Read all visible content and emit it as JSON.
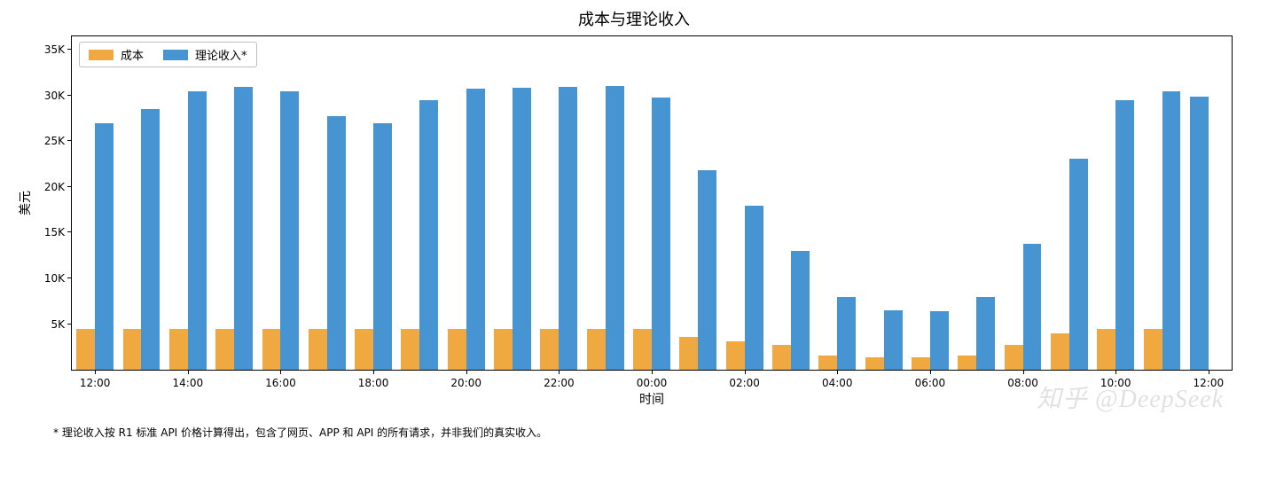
{
  "chart": {
    "type": "bar",
    "title": "成本与理论收入",
    "title_fontsize": 18,
    "xlabel": "时间",
    "ylabel": "美元",
    "label_fontsize": 14,
    "background_color": "#ffffff",
    "plot_border_color": "#000000",
    "xlim_categorical_padding": 0.5,
    "ylim": [
      0,
      36500
    ],
    "ytick_step": 5000,
    "yticks": [
      {
        "value": 5000,
        "label": "5K"
      },
      {
        "value": 10000,
        "label": "10K"
      },
      {
        "value": 15000,
        "label": "15K"
      },
      {
        "value": 20000,
        "label": "20K"
      },
      {
        "value": 25000,
        "label": "25K"
      },
      {
        "value": 30000,
        "label": "30K"
      },
      {
        "value": 35000,
        "label": "35K"
      }
    ],
    "xtick_labels": [
      "12:00",
      "14:00",
      "16:00",
      "18:00",
      "20:00",
      "22:00",
      "00:00",
      "02:00",
      "04:00",
      "06:00",
      "08:00",
      "10:00",
      "12:00"
    ],
    "xtick_step_hours": 2,
    "categories": [
      "12:00",
      "13:00",
      "14:00",
      "15:00",
      "16:00",
      "17:00",
      "18:00",
      "19:00",
      "20:00",
      "21:00",
      "22:00",
      "23:00",
      "00:00",
      "01:00",
      "02:00",
      "03:00",
      "04:00",
      "05:00",
      "06:00",
      "07:00",
      "08:00",
      "09:00",
      "10:00",
      "11:00"
    ],
    "series": [
      {
        "name": "成本",
        "color": "#f0a840",
        "values": [
          4500,
          4500,
          4500,
          4500,
          4500,
          4500,
          4500,
          4500,
          4500,
          4500,
          4500,
          4500,
          4500,
          3600,
          3100,
          2700,
          1600,
          1400,
          1400,
          1600,
          2700,
          4000,
          4500,
          4500
        ]
      },
      {
        "name": "理论收入*",
        "color": "#4694d1",
        "values": [
          27000,
          28500,
          30500,
          31000,
          30500,
          27800,
          27000,
          29500,
          30800,
          30900,
          31000,
          31100,
          29800,
          21800,
          18000,
          13000,
          8000,
          6500,
          6400,
          8000,
          13800,
          23100,
          29500,
          30500
        ]
      }
    ],
    "extra_blue_bar": {
      "comment": "trailing blue bar at 12:00 next day, only revenue series shown",
      "value": 29900,
      "color": "#4694d1"
    },
    "bar_group_width": 0.85,
    "bar_width": 0.4,
    "legend": {
      "position": "upper-left",
      "border_color": "#bfbfbf",
      "items": [
        {
          "label": "成本",
          "color": "#f0a840"
        },
        {
          "label": "理论收入*",
          "color": "#4694d1"
        }
      ]
    },
    "footnote": "* 理论收入按 R1 标准 API 价格计算得出，包含了网页、APP 和 API 的所有请求，并非我们的真实收入。",
    "watermark": "知乎 @DeepSeek",
    "tick_fontsize": 12
  }
}
